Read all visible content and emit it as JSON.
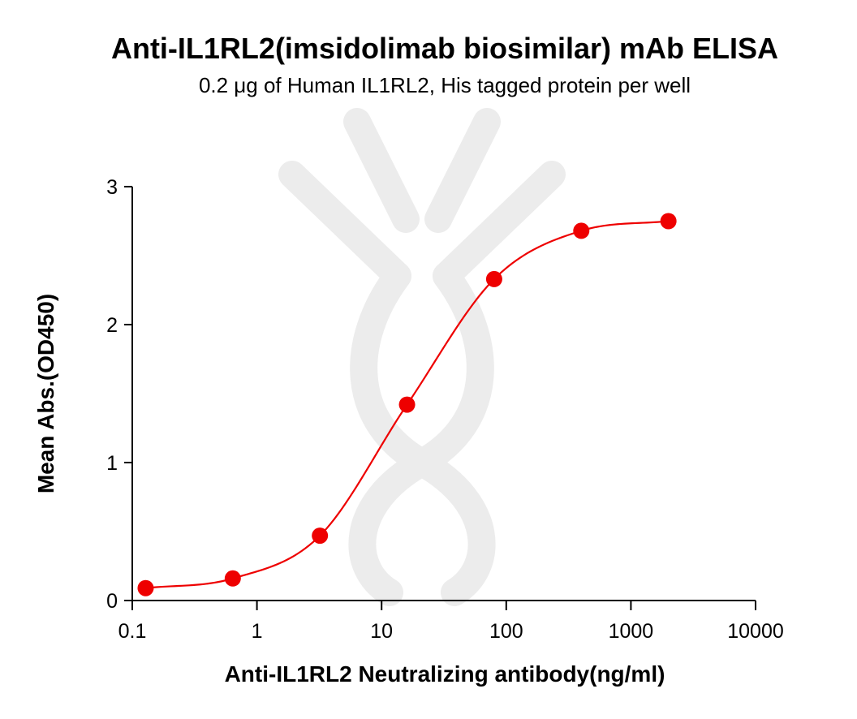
{
  "chart_data": {
    "type": "scatter",
    "title": "Anti-IL1RL2(imsidolimab biosimilar) mAb ELISA",
    "subtitle": "0.2 μg of Human IL1RL2, His tagged protein per well",
    "xlabel": "Anti-IL1RL2 Neutralizing antibody(ng/ml)",
    "ylabel": "Mean Abs.(OD450)",
    "x_scale": "log",
    "xlim": [
      0.1,
      10000
    ],
    "ylim": [
      0,
      3
    ],
    "x_ticks": [
      "0.1",
      "1",
      "10",
      "100",
      "1000",
      "10000"
    ],
    "y_ticks": [
      "0",
      "1",
      "2",
      "3"
    ],
    "grid": false,
    "series": [
      {
        "x": [
          0.128,
          0.64,
          3.2,
          16,
          80,
          400,
          2000
        ],
        "y": [
          0.09,
          0.16,
          0.47,
          1.42,
          2.33,
          2.68,
          2.75
        ],
        "color": "#ee0000",
        "marker": "circle",
        "fit_line": "4PL"
      }
    ]
  }
}
